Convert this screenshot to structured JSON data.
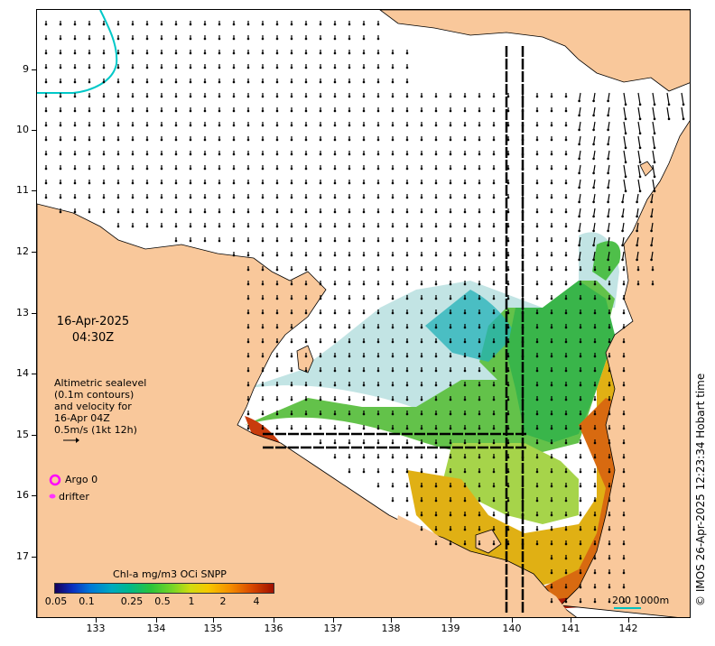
{
  "map": {
    "date_line1": "16-Apr-2025",
    "date_line2": "04:30Z",
    "y_ticks": [
      "9",
      "10",
      "11",
      "12",
      "13",
      "14",
      "15",
      "16",
      "17"
    ],
    "x_ticks": [
      "133",
      "134",
      "135",
      "136",
      "137",
      "138",
      "139",
      "140",
      "141",
      "142"
    ],
    "legend_lines": [
      "Altimetric sealevel",
      "(0.1m contours)",
      "and velocity for",
      "16-Apr 04Z",
      "0.5m/s (1kt 12h)"
    ],
    "argo_label": "Argo 0",
    "drifter_label": "drifter",
    "colorbar_title": "Chl-a mg/m3 OCi SNPP",
    "colorbar_ticks": [
      "0.05",
      "0.1",
      "0.25",
      "0.5",
      "1",
      "2",
      "4"
    ],
    "scale_label": "200  1000m",
    "credit": "© IMOS 26-Apr-2025 12:23:34 Hobart time",
    "colors": {
      "land": "#f9c89b",
      "ocean": "#ffffff",
      "argo": "#ff00ff",
      "drifter": "#ff33ff",
      "isobath": "#00c0c0"
    }
  }
}
